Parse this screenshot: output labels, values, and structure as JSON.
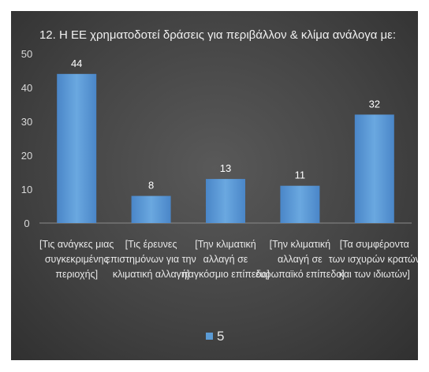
{
  "chart_data": {
    "type": "bar",
    "title": "12. Η ΕΕ χρηματοδοτεί δράσεις για περιβάλλον & κλίμα ανάλογα με:",
    "categories": [
      [
        "[Τις ανάγκες μιας",
        "συγκεκριμένης",
        "περιοχής]"
      ],
      [
        "[Τις έρευνες",
        "επιστημόνων για την",
        "κλιματική αλλαγή]"
      ],
      [
        "[Την κλιματική",
        "αλλαγή σε",
        "παγκόσμιο επίπεδο]"
      ],
      [
        "[Την κλιματική",
        "αλλαγή σε",
        "ευρωπαϊκό επίπεδο]"
      ],
      [
        "[Τα συμφέροντα",
        "των ισχυρών κρατών",
        "και των ιδιωτών]"
      ]
    ],
    "series": [
      {
        "name": "5",
        "values": [
          44,
          8,
          13,
          11,
          32
        ],
        "color": "#5b9bd5"
      }
    ],
    "ylim": [
      0,
      50
    ],
    "yticks": [
      "0",
      "10",
      "20",
      "30",
      "40",
      "50"
    ],
    "grid": false,
    "legend": "bottom"
  }
}
